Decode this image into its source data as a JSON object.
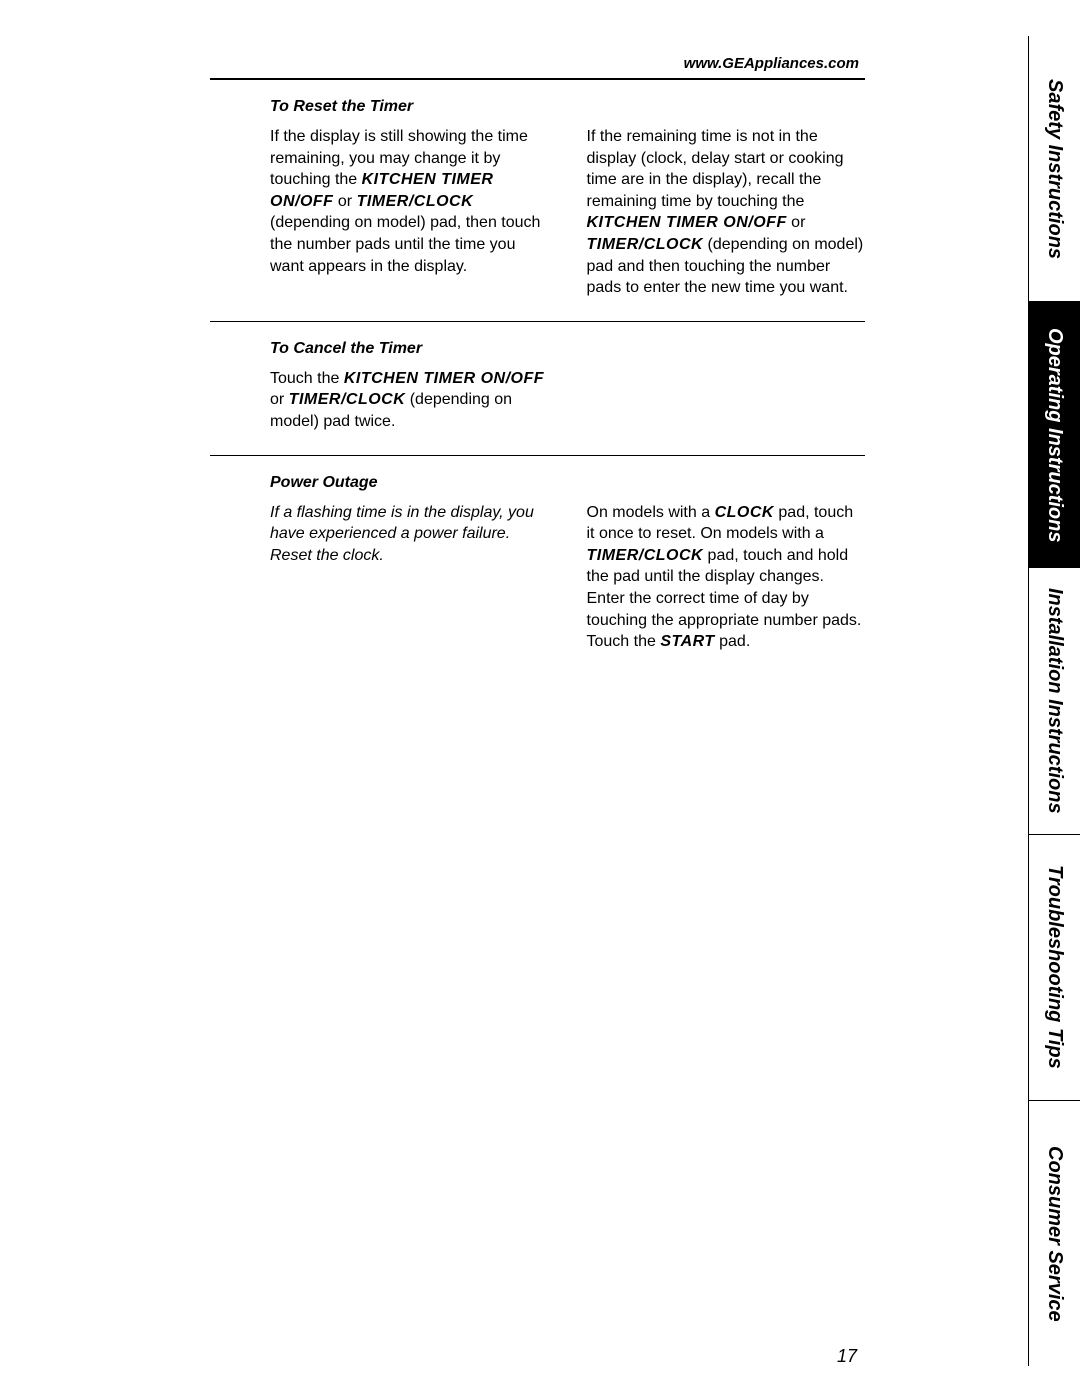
{
  "header": {
    "url": "www.GEAppliances.com"
  },
  "sections": {
    "reset": {
      "heading": "To Reset the Timer",
      "left": {
        "t1": "If the display is still showing the time remaining, you may change it by touching the ",
        "b1": "KITCHEN TIMER ON/OFF",
        "t2": " or ",
        "b2": "TIMER/CLOCK",
        "t3": " (depending on model) pad, then touch the number pads until the time you want appears in the display."
      },
      "right": {
        "t1": "If the remaining time is not in the display (clock, delay start or cooking time are in the display), recall the remaining time by touching the ",
        "b1": "KITCHEN TIMER ON/OFF",
        "t2": " or ",
        "b2": "TIMER/CLOCK",
        "t3": " (depending on model) pad and then touching the number pads to enter the new time you want."
      }
    },
    "cancel": {
      "heading": "To Cancel the Timer",
      "left": {
        "t1": "Touch the ",
        "b1": "KITCHEN TIMER ON/OFF",
        "t2": " or ",
        "b2": "TIMER/CLOCK",
        "t3": " (depending on model) pad twice."
      }
    },
    "power": {
      "heading": "Power Outage",
      "left": {
        "i1": "If a flashing time is in the display, you have experienced a power failure. Reset the clock."
      },
      "right": {
        "t1": "On models with a ",
        "b1": "CLOCK",
        "t2": " pad, touch it once to reset. On models with a ",
        "b2": "TIMER/CLOCK",
        "t3": " pad, touch and hold the pad until the display changes. Enter the correct time of day by touching the appropriate number pads. Touch the ",
        "b3": "START",
        "t4": " pad."
      }
    }
  },
  "tabs": {
    "safety": "Safety Instructions",
    "operating": "Operating Instructions",
    "installation": "Installation Instructions",
    "troubleshooting": "Troubleshooting Tips",
    "consumer": "Consumer Service"
  },
  "page_number": "17",
  "styling": {
    "body_font_size": 16,
    "heading_font_size": 16,
    "tab_font_size": 20,
    "colors": {
      "text": "#000000",
      "background": "#ffffff",
      "active_tab_bg": "#000000",
      "active_tab_fg": "#ffffff"
    }
  }
}
